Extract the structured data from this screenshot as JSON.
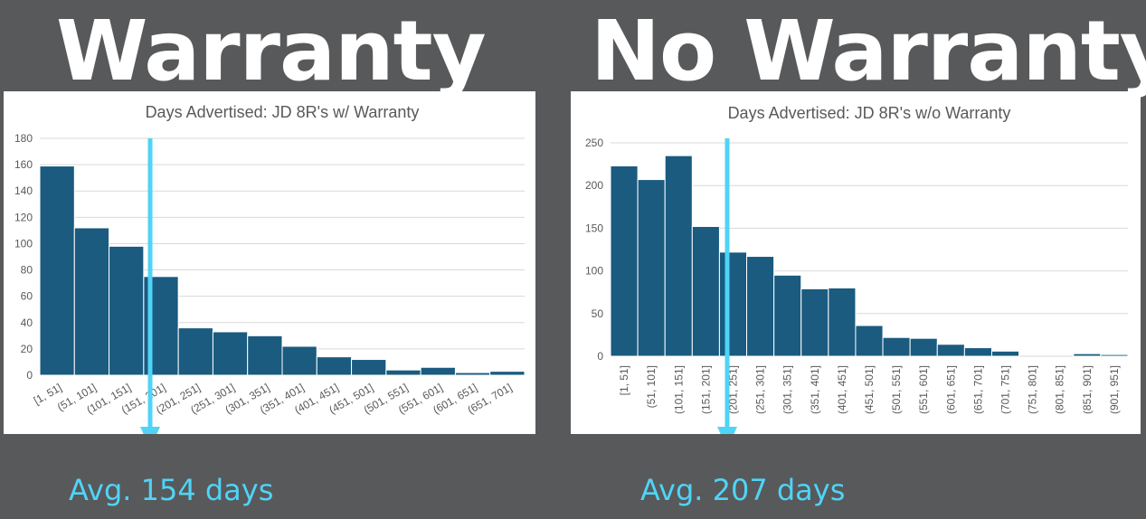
{
  "headers": {
    "left": "Warranty",
    "right": "No Warranty"
  },
  "averages": {
    "left": "Avg. 154 days",
    "right": "Avg. 207 days"
  },
  "colors": {
    "bar": "#1a5b7f",
    "arrow": "#4fd4f7",
    "grid": "#d9d9d9",
    "background": "#58595b"
  },
  "chart_data": [
    {
      "type": "bar",
      "title": "Days Advertised: JD 8R's w/ Warranty",
      "categories": [
        "[1, 51]",
        "(51, 101]",
        "(101, 151]",
        "(151, 201]",
        "(201, 251]",
        "(251, 301]",
        "(301, 351]",
        "(351, 401]",
        "(401, 451]",
        "(451, 501]",
        "(501, 551]",
        "(551, 601]",
        "(601, 651]",
        "(651, 701]"
      ],
      "values": [
        159,
        112,
        98,
        75,
        36,
        33,
        30,
        22,
        14,
        12,
        4,
        6,
        2,
        3
      ],
      "ylim": [
        0,
        180
      ],
      "yticks": [
        0,
        20,
        40,
        60,
        80,
        100,
        120,
        140,
        160,
        180
      ],
      "xlabel": "",
      "ylabel": "",
      "tick_rotation": -30,
      "average_marker": 154
    },
    {
      "type": "bar",
      "title": "Days Advertised: JD 8R's w/o Warranty",
      "categories": [
        "[1, 51]",
        "(51, 101]",
        "(101, 151]",
        "(151, 201]",
        "(201, 251]",
        "(251, 301]",
        "(301, 351]",
        "(351, 401]",
        "(401, 451]",
        "(451, 501]",
        "(501, 551]",
        "(551, 601]",
        "(601, 651]",
        "(651, 701]",
        "(701, 751]",
        "(751, 801]",
        "(801, 851]",
        "(851, 901]",
        "(901, 951]"
      ],
      "values": [
        223,
        207,
        235,
        152,
        122,
        117,
        95,
        79,
        80,
        36,
        22,
        21,
        14,
        10,
        6,
        0,
        0,
        3,
        2
      ],
      "ylim": [
        0,
        250
      ],
      "yticks": [
        0,
        50,
        100,
        150,
        200,
        250
      ],
      "xlabel": "",
      "ylabel": "",
      "tick_rotation": -90,
      "average_marker": 207
    }
  ]
}
